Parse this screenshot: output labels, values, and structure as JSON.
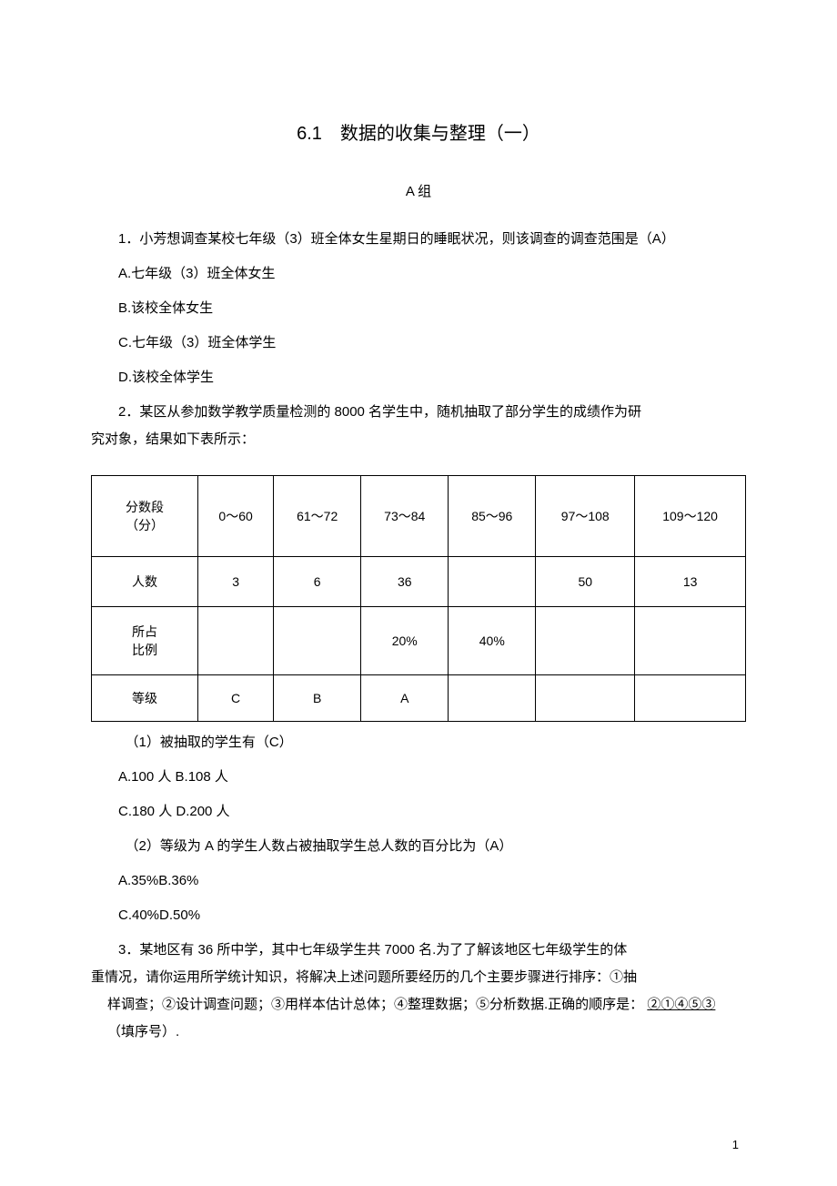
{
  "title": "6.1　数据的收集与整理（一）",
  "group_label": "A 组",
  "q1": {
    "stem": "1．小芳想调查某校七年级（3）班全体女生星期日的睡眠状况，则该调查的调查范围是（A）",
    "opts": {
      "a": "A.七年级（3）班全体女生",
      "b": "B.该校全体女生",
      "c": "C.七年级（3）班全体学生",
      "d": "D.该校全体学生"
    }
  },
  "q2": {
    "stem_l1": "2．某区从参加数学教学质量检测的 8000 名学生中，随机抽取了部分学生的成绩作为研",
    "stem_l2": "究对象，结果如下表所示：",
    "table": {
      "header_col": [
        "分数段",
        "（分）"
      ],
      "segments": [
        "0～60",
        "61～72",
        "73～84",
        "85～96",
        "97～108",
        "109～120"
      ],
      "count_label": "人数",
      "counts": [
        "3",
        "6",
        "36",
        "",
        "50",
        "13"
      ],
      "ratio_label": [
        "所占",
        "比例"
      ],
      "ratios": [
        "",
        "",
        "20%",
        "40%",
        "",
        ""
      ],
      "grade_label": "等级",
      "grades": [
        "C",
        "B",
        "A",
        "",
        "",
        ""
      ]
    },
    "sub1": {
      "stem": "（1）被抽取的学生有（C）",
      "opts_l1": "A.100 人 B.108 人",
      "opts_l2": "C.180 人 D.200 人"
    },
    "sub2": {
      "stem": "（2）等级为 A 的学生人数占被抽取学生总人数的百分比为（A）",
      "opts_l1": "A.35%B.36%",
      "opts_l2": "C.40%D.50%"
    }
  },
  "q3": {
    "l1": "3．某地区有 36 所中学，其中七年级学生共 7000 名.为了了解该地区七年级学生的体",
    "l2": "重情况，请你运用所学统计知识，将解决上述问题所要经历的几个主要步骤进行排序：①抽",
    "l3_a": "样调查；②设计调查问题；③用样本估计总体；④整理数据；⑤分析数据.正确的顺序是：",
    "l3_ans": "②①④⑤③",
    "l4": "（填序号）."
  },
  "pagenum": "1"
}
